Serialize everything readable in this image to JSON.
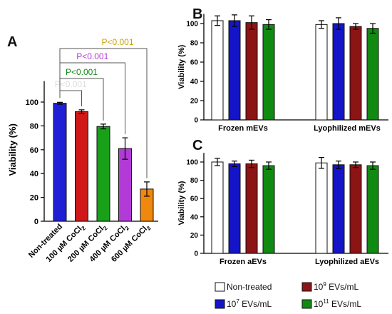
{
  "colors": {
    "non_treated": "#1f1fd6",
    "conc_100": "#d01818",
    "conc_200": "#19a019",
    "conc_400": "#b23ad6",
    "conc_600": "#f0880e",
    "ctrl_fill": "#ffffff",
    "ev_1e7": "#1414c8",
    "ev_1e9": "#8c1414",
    "ev_1e11": "#118a11",
    "p_gold": "#c8a000",
    "p_purple": "#b23ad6",
    "p_green": "#138a13"
  },
  "chart_data": [
    {
      "panel": "A",
      "type": "bar",
      "ylabel": "Viability (%)",
      "ylim": [
        0,
        120
      ],
      "yticks": [
        "0",
        "20",
        "40",
        "60",
        "80",
        "100"
      ],
      "categories": [
        {
          "label": "Non-treated",
          "sub": "",
          "tail": ""
        },
        {
          "label": "100 µM CoCl",
          "sub": "2",
          "tail": ""
        },
        {
          "label": "200 µM CoCl",
          "sub": "2",
          "tail": ""
        },
        {
          "label": "400 µM CoCl",
          "sub": "2",
          "tail": ""
        },
        {
          "label": "600 µM CoCl",
          "sub": "2",
          "tail": ""
        }
      ],
      "values": [
        99,
        92,
        79.5,
        61,
        27
      ],
      "errors": [
        0.8,
        1.5,
        2,
        9,
        6
      ],
      "annotations": [
        {
          "text": "P<0.001",
          "from": 0,
          "to": 4,
          "color": "p_gold"
        },
        {
          "text": "P<0.001",
          "from": 0,
          "to": 3,
          "color": "p_purple"
        },
        {
          "text": "P<0.001",
          "from": 0,
          "to": 2,
          "color": "p_green"
        },
        {
          "text": "P<0.001",
          "from": 0,
          "to": 1,
          "color": "p_grey"
        }
      ]
    },
    {
      "panel": "B",
      "type": "bar",
      "ylabel": "Viability (%)",
      "ylim": [
        0,
        110
      ],
      "yticks": [
        "0",
        "20",
        "40",
        "60",
        "80",
        "100"
      ],
      "categories": [
        "Frozen mEVs",
        "Lyophilized mEVs"
      ],
      "series": [
        {
          "values": [
            103,
            99
          ],
          "errors": [
            5,
            4
          ]
        },
        {
          "values": [
            103,
            100
          ],
          "errors": [
            6,
            6
          ]
        },
        {
          "values": [
            101,
            97
          ],
          "errors": [
            7,
            3
          ]
        },
        {
          "values": [
            99,
            95
          ],
          "errors": [
            5,
            5
          ]
        }
      ]
    },
    {
      "panel": "C",
      "type": "bar",
      "ylabel": "Viability (%)",
      "ylim": [
        0,
        110
      ],
      "yticks": [
        "0",
        "20",
        "40",
        "60",
        "80",
        "100"
      ],
      "categories": [
        "Frozen aEVs",
        "Lyophilized aEVs"
      ],
      "series": [
        {
          "values": [
            100,
            99
          ],
          "errors": [
            4,
            6
          ]
        },
        {
          "values": [
            98,
            97
          ],
          "errors": [
            3,
            4
          ]
        },
        {
          "values": [
            98,
            97
          ],
          "errors": [
            4,
            3
          ]
        },
        {
          "values": [
            96,
            96
          ],
          "errors": [
            4,
            4
          ]
        }
      ]
    }
  ],
  "panel_labels": [
    "A",
    "B",
    "C"
  ],
  "legend": [
    {
      "text": "Non-treated",
      "sup": "",
      "tail": "",
      "color": "ctrl_fill"
    },
    {
      "text": "10",
      "sup": "9",
      "tail": " EVs/mL",
      "color": "ev_1e9"
    },
    {
      "text": "10",
      "sup": "7",
      "tail": " EVs/mL",
      "color": "ev_1e7"
    },
    {
      "text": "10",
      "sup": "11",
      "tail": " EVs/mL",
      "color": "ev_1e11"
    }
  ]
}
